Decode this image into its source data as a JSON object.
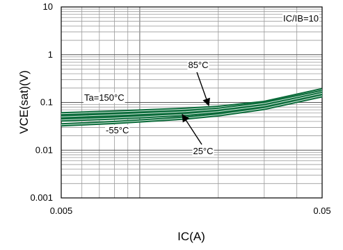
{
  "chart_data": {
    "type": "line",
    "title": "",
    "xlabel": "IC(A)",
    "ylabel": "VCE(sat)(V)",
    "xscale": "log",
    "yscale": "log",
    "xlim": [
      0.005,
      0.05
    ],
    "ylim": [
      0.001,
      10
    ],
    "x_ticks": [
      0.005,
      0.05
    ],
    "x_tick_labels": [
      "0.005",
      "0.05"
    ],
    "y_ticks": [
      0.001,
      0.01,
      0.1,
      1,
      10
    ],
    "y_tick_labels": [
      "0.001",
      "0.01",
      "0.1",
      "1",
      "10"
    ],
    "grid": true,
    "condition_label": "IC/IB=10",
    "line_color": "#0b6b3a",
    "series": [
      {
        "name": "Ta=150°C",
        "x": [
          0.005,
          0.008,
          0.01,
          0.015,
          0.02,
          0.03,
          0.05
        ],
        "y": [
          0.058,
          0.063,
          0.066,
          0.072,
          0.079,
          0.1,
          0.185
        ]
      },
      {
        "name": "85°C",
        "x": [
          0.005,
          0.008,
          0.01,
          0.015,
          0.02,
          0.03,
          0.05
        ],
        "y": [
          0.05,
          0.055,
          0.058,
          0.064,
          0.072,
          0.095,
          0.17
        ]
      },
      {
        "name": "25°C",
        "x": [
          0.005,
          0.008,
          0.01,
          0.015,
          0.02,
          0.03,
          0.05
        ],
        "y": [
          0.043,
          0.047,
          0.05,
          0.056,
          0.064,
          0.085,
          0.155
        ]
      },
      {
        "name": "-55°C",
        "x": [
          0.005,
          0.008,
          0.01,
          0.015,
          0.02,
          0.03,
          0.05
        ],
        "y": [
          0.034,
          0.038,
          0.041,
          0.047,
          0.055,
          0.075,
          0.138
        ]
      }
    ],
    "annotations": [
      "Ta=150°C",
      "85°C",
      "25°C",
      "-55°C"
    ]
  }
}
